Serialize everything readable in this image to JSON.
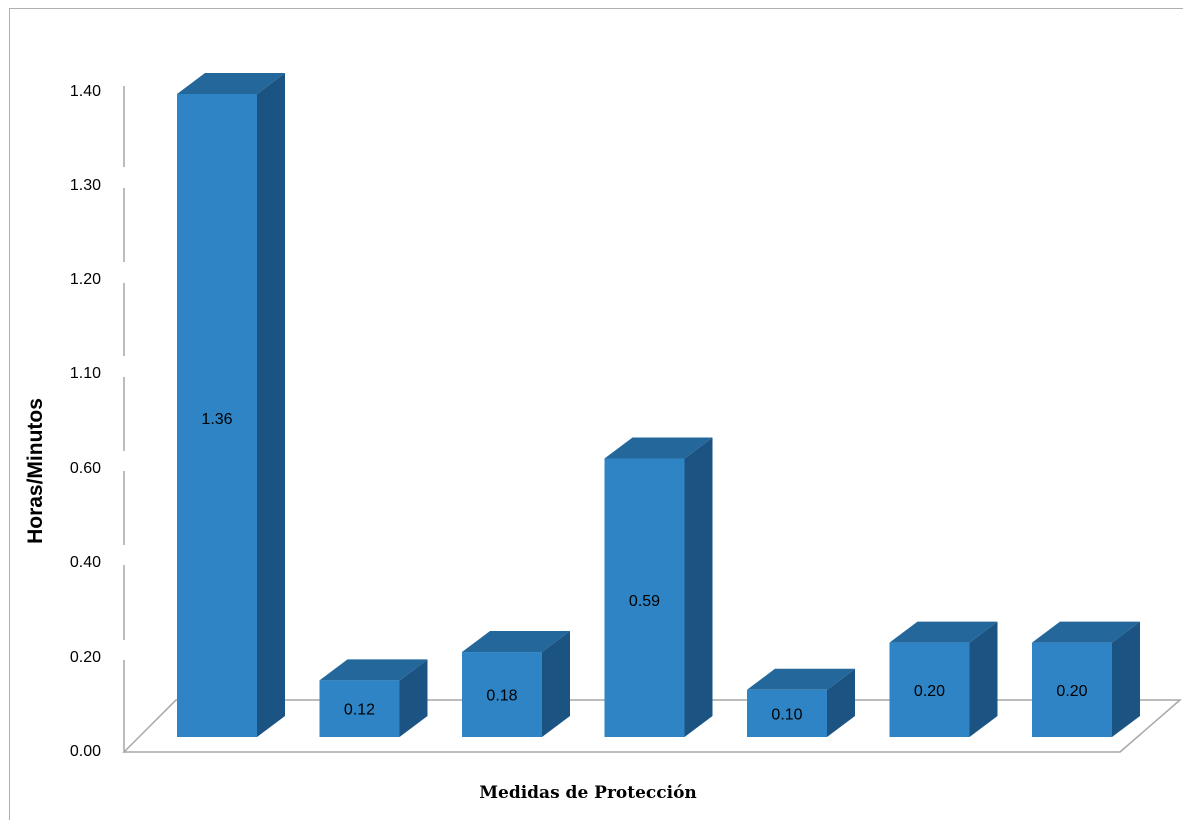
{
  "chart_data": {
    "type": "bar",
    "title": "",
    "xlabel": "Medidas de Protección",
    "ylabel": "Horas/Minutos",
    "y_tick_labels": [
      "0.00",
      "0.20",
      "0.40",
      "0.60",
      "1.10",
      "1.20",
      "1.30",
      "1.40"
    ],
    "categories": [
      "",
      "",
      "",
      "",
      "",
      "",
      ""
    ],
    "values": [
      1.36,
      0.12,
      0.18,
      0.59,
      0.1,
      0.2,
      0.2
    ],
    "value_labels": [
      "1.36",
      "0.12",
      "0.18",
      "0.59",
      "0.10",
      "0.20",
      "0.20"
    ],
    "grid": false,
    "legend": "none",
    "style": "3d-column",
    "colors": {
      "front": "#2e84c4",
      "side": "#1b5482",
      "top": "#23679b",
      "axis": "#a6a6a6"
    }
  }
}
